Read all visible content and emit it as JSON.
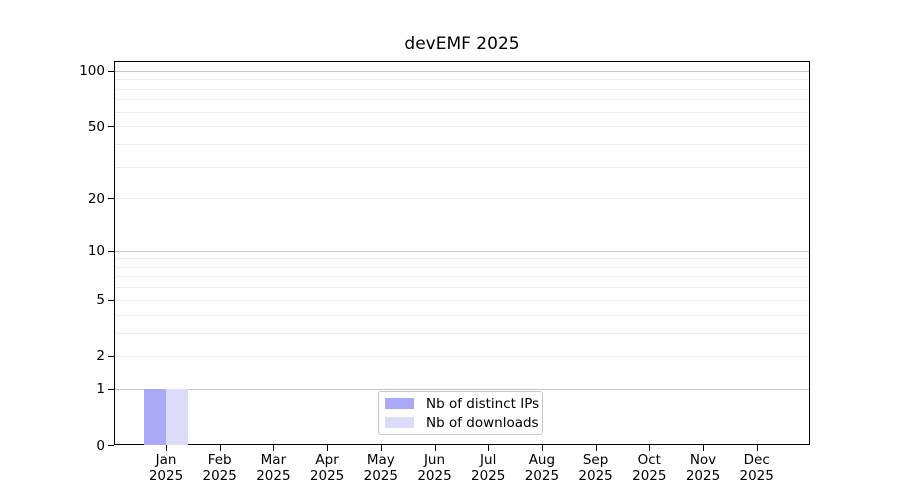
{
  "page": {
    "background": "#ffffff"
  },
  "chart_data": {
    "type": "bar",
    "title": "devEMF 2025",
    "categories": [
      "Jan",
      "Feb",
      "Mar",
      "Apr",
      "May",
      "Jun",
      "Jul",
      "Aug",
      "Sep",
      "Oct",
      "Nov",
      "Dec"
    ],
    "x_tick_year": "2025",
    "series": [
      {
        "name": "Nb of distinct IPs",
        "color": "#a9a9f7",
        "values": [
          1,
          0,
          0,
          0,
          0,
          0,
          0,
          0,
          0,
          0,
          0,
          0
        ]
      },
      {
        "name": "Nb of downloads",
        "color": "#dcdcf8",
        "values": [
          1,
          0,
          0,
          0,
          0,
          0,
          0,
          0,
          0,
          0,
          0,
          0
        ]
      }
    ],
    "y_axis": {
      "scale": "log10(1+x)",
      "tick_values": [
        0,
        1,
        2,
        5,
        10,
        20,
        50,
        100
      ],
      "major_gridlines": [
        1,
        10,
        100
      ],
      "minor_gridlines": [
        2,
        3,
        4,
        5,
        6,
        7,
        8,
        9,
        20,
        30,
        40,
        50,
        60,
        70,
        80,
        90
      ],
      "ylim": [
        0,
        113
      ]
    },
    "legend": {
      "position": "bottom-center"
    },
    "colors": {
      "axis": "#000000",
      "major_gridline": "#c6c6c6",
      "minor_gridline": "#ececec",
      "text": "#000000",
      "legend_border": "#c9c9c9"
    }
  }
}
